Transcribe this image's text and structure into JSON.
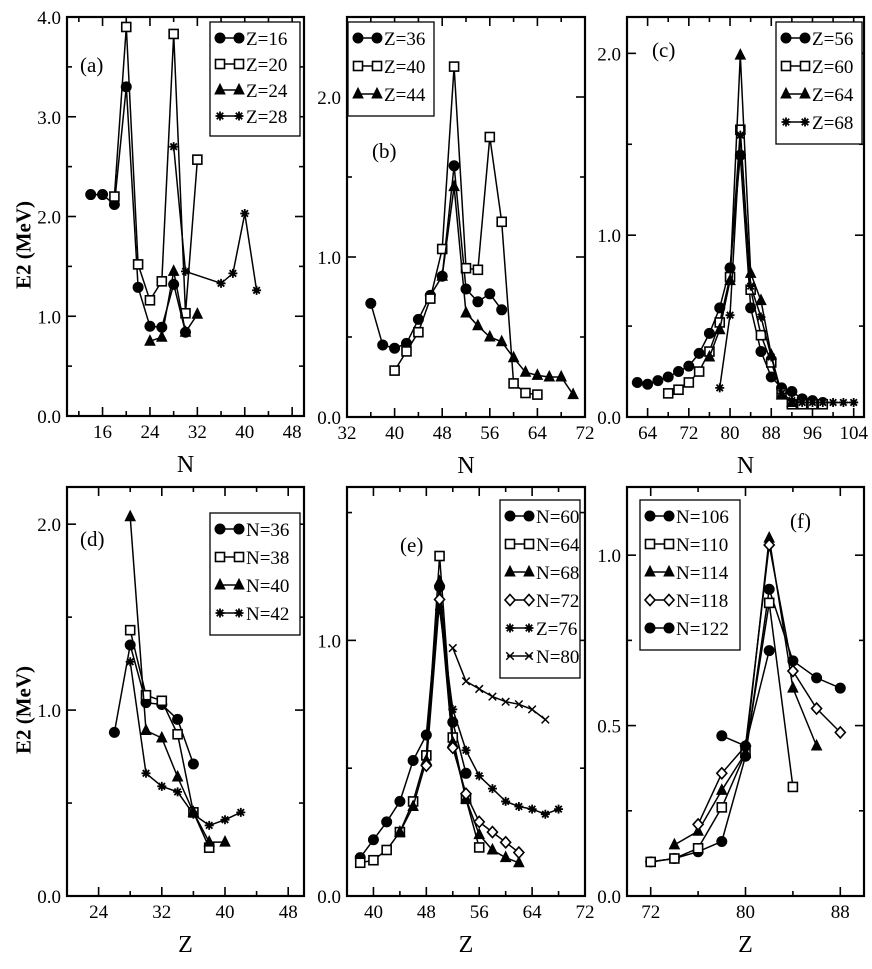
{
  "figure": {
    "ylabel_top": "E2 (MeV)",
    "ylabel_bottom": "E2 (MeV)"
  },
  "chart_data": [
    {
      "id": "a",
      "type": "line",
      "panel_label": "(a)",
      "xlabel": "N",
      "ylabel": "E2 (MeV)",
      "xlim": [
        10,
        50
      ],
      "ylim": [
        0,
        4
      ],
      "xticks": [
        16,
        24,
        32,
        40,
        48
      ],
      "yticks": [
        0,
        1,
        2,
        3,
        4
      ],
      "ytick_labels": [
        "0.0",
        "1.0",
        "2.0",
        "3.0",
        "4.0"
      ],
      "series": [
        {
          "name": "Z=16",
          "marker": "circle",
          "x": [
            14,
            16,
            18,
            20,
            22,
            24,
            26,
            28,
            30
          ],
          "y": [
            2.22,
            2.22,
            2.12,
            3.3,
            1.29,
            0.9,
            0.89,
            1.32,
            0.84
          ]
        },
        {
          "name": "Z=20",
          "marker": "square",
          "x": [
            18,
            20,
            22,
            24,
            26,
            28,
            30,
            32
          ],
          "y": [
            2.2,
            3.9,
            1.52,
            1.16,
            1.35,
            3.83,
            1.03,
            2.57
          ]
        },
        {
          "name": "Z=24",
          "marker": "triangle",
          "x": [
            24,
            26,
            28,
            30,
            32
          ],
          "y": [
            0.75,
            0.79,
            1.45,
            0.84,
            1.02
          ]
        },
        {
          "name": "Z=28",
          "marker": "star",
          "x": [
            28,
            30,
            36,
            38,
            40,
            42
          ],
          "y": [
            2.7,
            1.45,
            1.33,
            1.43,
            2.03,
            1.26
          ]
        }
      ]
    },
    {
      "id": "b",
      "type": "line",
      "panel_label": "(b)",
      "xlabel": "N",
      "ylabel": "E2 (MeV)",
      "xlim": [
        32,
        72
      ],
      "ylim": [
        0,
        2.5
      ],
      "xticks": [
        32,
        40,
        48,
        56,
        64,
        72
      ],
      "yticks": [
        0,
        1,
        2
      ],
      "ytick_labels": [
        "0.0",
        "1.0",
        "2.0"
      ],
      "series": [
        {
          "name": "Z=36",
          "marker": "circle",
          "x": [
            36,
            38,
            40,
            42,
            44,
            46,
            48,
            50,
            52,
            54,
            56,
            58
          ],
          "y": [
            0.71,
            0.45,
            0.43,
            0.46,
            0.61,
            0.76,
            0.88,
            1.57,
            0.8,
            0.72,
            0.77,
            0.67
          ]
        },
        {
          "name": "Z=40",
          "marker": "square",
          "x": [
            40,
            42,
            44,
            46,
            48,
            50,
            52,
            54,
            56,
            58,
            60,
            62,
            64
          ],
          "y": [
            0.29,
            0.41,
            0.53,
            0.74,
            1.05,
            2.19,
            0.93,
            0.92,
            1.75,
            1.22,
            0.21,
            0.15,
            0.14
          ]
        },
        {
          "name": "Z=44",
          "marker": "triangle",
          "x": [
            48,
            50,
            52,
            54,
            56,
            58,
            60,
            62,
            64,
            66,
            68,
            70
          ],
          "y": [
            0.88,
            1.44,
            0.65,
            0.57,
            0.5,
            0.47,
            0.37,
            0.28,
            0.26,
            0.25,
            0.25,
            0.14
          ]
        }
      ]
    },
    {
      "id": "c",
      "type": "line",
      "panel_label": "(c)",
      "xlabel": "N",
      "ylabel": "E2 (MeV)",
      "xlim": [
        60,
        106
      ],
      "ylim": [
        0,
        2.2
      ],
      "xticks": [
        64,
        72,
        80,
        88,
        96,
        104
      ],
      "yticks": [
        0,
        1,
        2
      ],
      "ytick_labels": [
        "0.0",
        "1.0",
        "2.0"
      ],
      "series": [
        {
          "name": "Z=56",
          "marker": "circle",
          "x": [
            62,
            64,
            66,
            68,
            70,
            72,
            74,
            76,
            78,
            80,
            82,
            84,
            86,
            88,
            90,
            92,
            94,
            96,
            98
          ],
          "y": [
            0.19,
            0.18,
            0.2,
            0.22,
            0.25,
            0.28,
            0.35,
            0.46,
            0.6,
            0.82,
            1.44,
            0.6,
            0.36,
            0.22,
            0.16,
            0.14,
            0.1,
            0.09,
            0.08
          ]
        },
        {
          "name": "Z=60",
          "marker": "square",
          "x": [
            68,
            70,
            72,
            74,
            76,
            78,
            80,
            82,
            84,
            86,
            88,
            90,
            92,
            94,
            96,
            98
          ],
          "y": [
            0.13,
            0.15,
            0.19,
            0.25,
            0.36,
            0.52,
            0.77,
            1.58,
            0.7,
            0.45,
            0.3,
            0.13,
            0.07,
            0.07,
            0.07,
            0.07
          ]
        },
        {
          "name": "Z=64",
          "marker": "triangle",
          "x": [
            76,
            78,
            80,
            82,
            84,
            86,
            88,
            90,
            92
          ],
          "y": [
            0.33,
            0.48,
            0.75,
            1.99,
            0.79,
            0.64,
            0.34,
            0.12,
            0.08
          ]
        },
        {
          "name": "Z=68",
          "marker": "star",
          "x": [
            78,
            80,
            82,
            84,
            86,
            88,
            90,
            92,
            94,
            96,
            98,
            100,
            102,
            104
          ],
          "y": [
            0.16,
            0.56,
            1.55,
            0.72,
            0.55,
            0.33,
            0.13,
            0.09,
            0.08,
            0.08,
            0.08,
            0.08,
            0.08,
            0.08
          ]
        }
      ]
    },
    {
      "id": "d",
      "type": "line",
      "panel_label": "(d)",
      "xlabel": "Z",
      "ylabel": "E2 (MeV)",
      "xlim": [
        20,
        50
      ],
      "ylim": [
        0,
        2.2
      ],
      "xticks": [
        24,
        32,
        40,
        48
      ],
      "yticks": [
        0,
        1,
        2
      ],
      "ytick_labels": [
        "0.0",
        "1.0",
        "2.0"
      ],
      "series": [
        {
          "name": "N=36",
          "marker": "circle",
          "x": [
            26,
            28,
            30,
            32,
            34,
            36
          ],
          "y": [
            0.88,
            1.35,
            1.04,
            1.03,
            0.95,
            0.71
          ]
        },
        {
          "name": "N=38",
          "marker": "square",
          "x": [
            28,
            30,
            32,
            34,
            36,
            38
          ],
          "y": [
            1.43,
            1.08,
            1.05,
            0.87,
            0.45,
            0.26
          ]
        },
        {
          "name": "N=40",
          "marker": "triangle",
          "x": [
            28,
            30,
            32,
            34,
            36,
            38,
            40
          ],
          "y": [
            2.04,
            0.89,
            0.85,
            0.64,
            0.45,
            0.29,
            0.29
          ]
        },
        {
          "name": "N=42",
          "marker": "star",
          "x": [
            28,
            30,
            32,
            34,
            36,
            38,
            40,
            42
          ],
          "y": [
            1.26,
            0.66,
            0.59,
            0.56,
            0.44,
            0.38,
            0.41,
            0.45
          ]
        }
      ]
    },
    {
      "id": "e",
      "type": "line",
      "panel_label": "(e)",
      "xlabel": "Z",
      "ylabel": "E2 (MeV)",
      "xlim": [
        36,
        72
      ],
      "ylim": [
        0,
        1.6
      ],
      "xticks": [
        40,
        48,
        56,
        64,
        72
      ],
      "yticks": [
        0,
        1
      ],
      "ytick_labels": [
        "0.0",
        "1.0"
      ],
      "series": [
        {
          "name": "N=60",
          "marker": "circle",
          "x": [
            38,
            40,
            42,
            44,
            46,
            48,
            50,
            52,
            54
          ],
          "y": [
            0.15,
            0.22,
            0.29,
            0.37,
            0.53,
            0.63,
            1.21,
            0.68,
            0.48
          ]
        },
        {
          "name": "N=64",
          "marker": "square",
          "x": [
            38,
            40,
            42,
            44,
            46,
            48,
            50,
            52,
            54,
            56
          ],
          "y": [
            0.13,
            0.14,
            0.18,
            0.25,
            0.37,
            0.55,
            1.33,
            0.62,
            0.38,
            0.19
          ]
        },
        {
          "name": "N=68",
          "marker": "triangle",
          "x": [
            44,
            46,
            48,
            50,
            52,
            54,
            56,
            58,
            60,
            62
          ],
          "y": [
            0.25,
            0.35,
            0.53,
            1.23,
            0.6,
            0.38,
            0.24,
            0.18,
            0.15,
            0.13
          ]
        },
        {
          "name": "N=72",
          "marker": "diamond",
          "x": [
            48,
            50,
            52,
            54,
            56,
            58,
            60,
            62
          ],
          "y": [
            0.51,
            1.16,
            0.58,
            0.4,
            0.29,
            0.25,
            0.21,
            0.17
          ]
        },
        {
          "name": "Z=76",
          "marker": "star",
          "x": [
            50,
            52,
            54,
            56,
            58,
            60,
            62,
            64,
            66,
            68
          ],
          "y": [
            1.12,
            0.73,
            0.57,
            0.47,
            0.42,
            0.37,
            0.35,
            0.34,
            0.32,
            0.34
          ]
        },
        {
          "name": "N=80",
          "marker": "x",
          "x": [
            52,
            54,
            56,
            58,
            60,
            62,
            64,
            66
          ],
          "y": [
            0.97,
            0.84,
            0.81,
            0.78,
            0.76,
            0.75,
            0.73,
            0.69
          ]
        }
      ]
    },
    {
      "id": "f",
      "type": "line",
      "panel_label": "(f)",
      "xlabel": "Z",
      "ylabel": "E2 (MeV)",
      "xlim": [
        70,
        90
      ],
      "ylim": [
        0,
        1.2
      ],
      "xticks": [
        72,
        80,
        88
      ],
      "yticks": [
        0,
        0.5,
        1
      ],
      "ytick_labels": [
        "0.0",
        "0.5",
        "1.0"
      ],
      "series": [
        {
          "name": "N=106",
          "marker": "circle",
          "x": [
            72,
            74,
            76,
            78,
            80,
            82,
            84,
            86,
            88
          ],
          "y": [
            0.1,
            0.11,
            0.13,
            0.16,
            0.41,
            0.9,
            0.69,
            0.64,
            0.61
          ]
        },
        {
          "name": "N=110",
          "marker": "square",
          "x": [
            72,
            74,
            76,
            78,
            80,
            82,
            84
          ],
          "y": [
            0.1,
            0.11,
            0.14,
            0.26,
            0.42,
            0.86,
            0.32
          ]
        },
        {
          "name": "N=114",
          "marker": "triangle",
          "x": [
            74,
            76,
            78,
            80,
            82,
            84,
            86
          ],
          "y": [
            0.15,
            0.19,
            0.31,
            0.42,
            1.05,
            0.61,
            0.44
          ]
        },
        {
          "name": "N=118",
          "marker": "diamond",
          "x": [
            76,
            78,
            80,
            82,
            84,
            86,
            88
          ],
          "y": [
            0.21,
            0.36,
            0.44,
            1.03,
            0.66,
            0.55,
            0.48
          ]
        },
        {
          "name": "N=122",
          "marker": "circle",
          "x": [
            78,
            80,
            82
          ],
          "y": [
            0.47,
            0.44,
            0.72
          ]
        }
      ]
    }
  ]
}
